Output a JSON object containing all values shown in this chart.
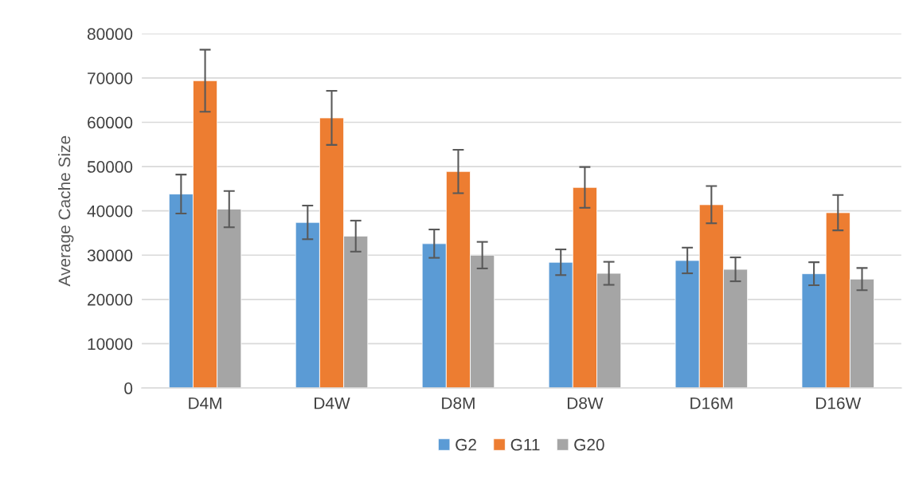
{
  "chart_data": {
    "type": "bar",
    "ylabel": "Average Cache Size",
    "categories": [
      "D4M",
      "D4W",
      "D8M",
      "D8W",
      "D16M",
      "D16W"
    ],
    "series": [
      {
        "name": "G2",
        "color": "#5b9bd5",
        "values": [
          43800,
          37400,
          32600,
          28400,
          28800,
          25800
        ],
        "errors": [
          4400,
          3800,
          3200,
          2900,
          2900,
          2600
        ]
      },
      {
        "name": "G11",
        "color": "#ed7d31",
        "values": [
          69400,
          61000,
          48900,
          45300,
          41400,
          39600
        ],
        "errors": [
          7000,
          6100,
          4900,
          4600,
          4200,
          4000
        ]
      },
      {
        "name": "G20",
        "color": "#a5a5a5",
        "values": [
          40400,
          34300,
          30000,
          25900,
          26800,
          24600
        ],
        "errors": [
          4100,
          3500,
          3000,
          2600,
          2700,
          2500
        ]
      }
    ],
    "ylim": [
      0,
      80000
    ],
    "yticks": [
      0,
      10000,
      20000,
      30000,
      40000,
      50000,
      60000,
      70000,
      80000
    ],
    "grid": "y",
    "legend": "bottom"
  }
}
